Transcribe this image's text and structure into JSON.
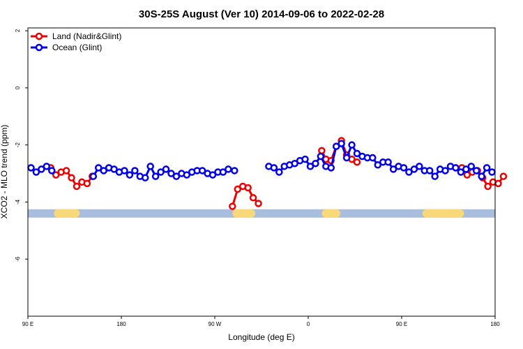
{
  "chart_data": {
    "type": "line",
    "title": "30S-25S August (Ver 10)   2014-09-06 to 2022-02-28",
    "xlabel": "Longitude (deg E)",
    "ylabel": "XCO2 - MLO trend (ppm)",
    "xlim": [
      90,
      540
    ],
    "ylim": [
      -8,
      2.1
    ],
    "x_ticks": [
      90,
      180,
      270,
      360,
      450,
      540
    ],
    "x_tick_labels": [
      "90 E",
      "180",
      "90 W",
      "0",
      "90 E",
      "180"
    ],
    "y_ticks": [
      2,
      0,
      -2,
      -4,
      -6
    ],
    "y_tick_labels": [
      "2",
      "0",
      "-2",
      "-4",
      "-6"
    ],
    "legend_position": "top-left",
    "colors": {
      "land": "#ee0000",
      "ocean": "#0000ee",
      "ocean_band": "#a8bedc",
      "land_band": "#f8d878"
    },
    "band": {
      "y": -4.4,
      "land_segments": [
        [
          115,
          140
        ],
        [
          287,
          309
        ],
        [
          373,
          391
        ],
        [
          470,
          510
        ]
      ]
    },
    "series": [
      {
        "name": "Land (Nadir&Glint)",
        "color": "#ee0000",
        "x": [
          112,
          117,
          122,
          127,
          132,
          137,
          142,
          147,
          152,
          287,
          292,
          297,
          302,
          307,
          312,
          373,
          377,
          382,
          387,
          392,
          397,
          402,
          407,
          508,
          513,
          518,
          523,
          528,
          533,
          538,
          543,
          548
        ],
        "y": [
          -2.8,
          -3.05,
          -2.95,
          -2.9,
          -3.15,
          -3.45,
          -3.3,
          -3.35,
          -3.1,
          -4.15,
          -3.55,
          -3.45,
          -3.5,
          -3.85,
          -4.05,
          -2.2,
          -2.5,
          -2.55,
          -2.05,
          -1.85,
          -2.35,
          -2.5,
          -2.6,
          -2.8,
          -3.05,
          -2.95,
          -2.9,
          -3.15,
          -3.45,
          -3.3,
          -3.35,
          -3.1
        ]
      },
      {
        "name": "Ocean (Glint)",
        "color": "#0000ee",
        "x": [
          93,
          98,
          103,
          108,
          113,
          153,
          158,
          163,
          168,
          173,
          178,
          183,
          188,
          193,
          198,
          203,
          208,
          213,
          218,
          223,
          228,
          233,
          238,
          243,
          248,
          253,
          258,
          263,
          268,
          273,
          278,
          283,
          289,
          322,
          327,
          332,
          337,
          342,
          347,
          352,
          357,
          362,
          367,
          372,
          377,
          382,
          387,
          392,
          397,
          402,
          407,
          412,
          417,
          422,
          427,
          432,
          437,
          442,
          447,
          452,
          457,
          462,
          467,
          472,
          477,
          482,
          487,
          492,
          497,
          502,
          507,
          512,
          517,
          522,
          527,
          532,
          537
        ],
        "y": [
          -2.8,
          -2.95,
          -2.85,
          -2.75,
          -2.9,
          -3.1,
          -2.8,
          -2.9,
          -2.8,
          -2.85,
          -2.95,
          -2.9,
          -3.05,
          -2.9,
          -3.1,
          -3.15,
          -2.75,
          -3.1,
          -2.95,
          -2.85,
          -3.0,
          -3.1,
          -3.0,
          -3.05,
          -2.95,
          -2.9,
          -2.9,
          -3.0,
          -3.05,
          -2.95,
          -2.95,
          -2.85,
          -2.9,
          -2.75,
          -2.8,
          -2.95,
          -2.75,
          -2.7,
          -2.65,
          -2.55,
          -2.5,
          -2.75,
          -2.65,
          -2.4,
          -2.75,
          -2.8,
          -2.05,
          -1.95,
          -2.45,
          -2.0,
          -2.3,
          -2.4,
          -2.45,
          -2.45,
          -2.7,
          -2.6,
          -2.6,
          -2.85,
          -2.75,
          -2.8,
          -2.95,
          -2.85,
          -2.75,
          -2.9,
          -2.9,
          -3.1,
          -2.85,
          -2.9,
          -2.75,
          -2.8,
          -2.95,
          -2.85,
          -2.75,
          -2.9,
          -3.1,
          -2.8,
          -2.95
        ]
      }
    ],
    "series_segments": {
      "land": [
        [
          0,
          8
        ],
        [
          9,
          14
        ],
        [
          15,
          20
        ],
        [
          21,
          21
        ],
        [
          22,
          22
        ],
        [
          23,
          31
        ]
      ],
      "ocean": [
        [
          0,
          4
        ],
        [
          5,
          32
        ],
        [
          33,
          76
        ]
      ]
    }
  }
}
